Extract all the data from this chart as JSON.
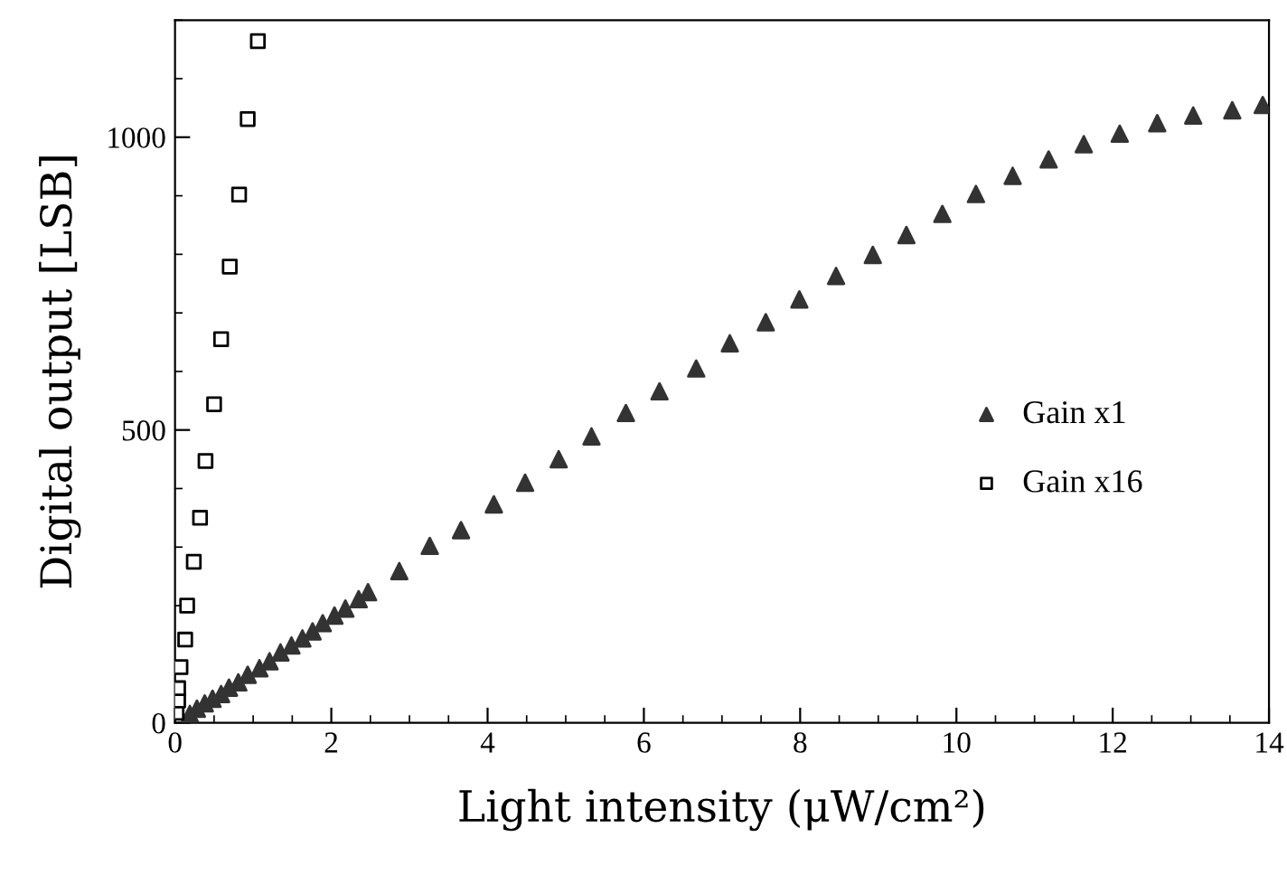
{
  "chart_data": {
    "type": "scatter",
    "xlabel": "Light intensity (μW/cm²)",
    "ylabel": "Digital output [LSB]",
    "xlim": [
      0,
      14
    ],
    "xticks": [
      0,
      2,
      4,
      6,
      8,
      10,
      12,
      14
    ],
    "ylim": [
      0,
      1200
    ],
    "yticks": [
      0,
      500,
      1000
    ],
    "legend": "right",
    "grid": false,
    "series": [
      {
        "name": "Gain x1",
        "color": "#333333",
        "marker": "triangle",
        "x": [
          0.19,
          0.28,
          0.38,
          0.48,
          0.59,
          0.69,
          0.81,
          0.93,
          1.08,
          1.21,
          1.35,
          1.49,
          1.63,
          1.76,
          1.89,
          2.04,
          2.18,
          2.35,
          2.47,
          2.87,
          3.26,
          3.66,
          4.08,
          4.48,
          4.91,
          5.33,
          5.77,
          6.2,
          6.67,
          7.1,
          7.56,
          7.99,
          8.46,
          8.93,
          9.36,
          9.82,
          10.25,
          10.72,
          11.18,
          11.63,
          12.09,
          12.57,
          13.03,
          13.53,
          13.92
        ],
        "values": [
          15,
          24,
          33,
          41,
          49,
          60,
          69,
          82,
          93,
          105,
          120,
          132,
          144,
          156,
          170,
          183,
          195,
          211,
          223,
          259,
          302,
          329,
          373,
          410,
          450,
          489,
          529,
          566,
          605,
          648,
          684,
          723,
          763,
          799,
          833,
          869,
          903,
          934,
          962,
          988,
          1006,
          1024,
          1037,
          1046,
          1055
        ]
      },
      {
        "name": "Gain x16",
        "color": "#000000",
        "marker": "square",
        "x": [
          0.02,
          0.04,
          0.04,
          0.07,
          0.13,
          0.155,
          0.24,
          0.32,
          0.39,
          0.5,
          0.59,
          0.7,
          0.82,
          0.93,
          1.06
        ],
        "values": [
          17,
          38,
          59,
          95,
          142,
          200,
          275,
          350,
          447,
          544,
          655,
          779,
          902,
          1031,
          1164
        ]
      }
    ]
  }
}
